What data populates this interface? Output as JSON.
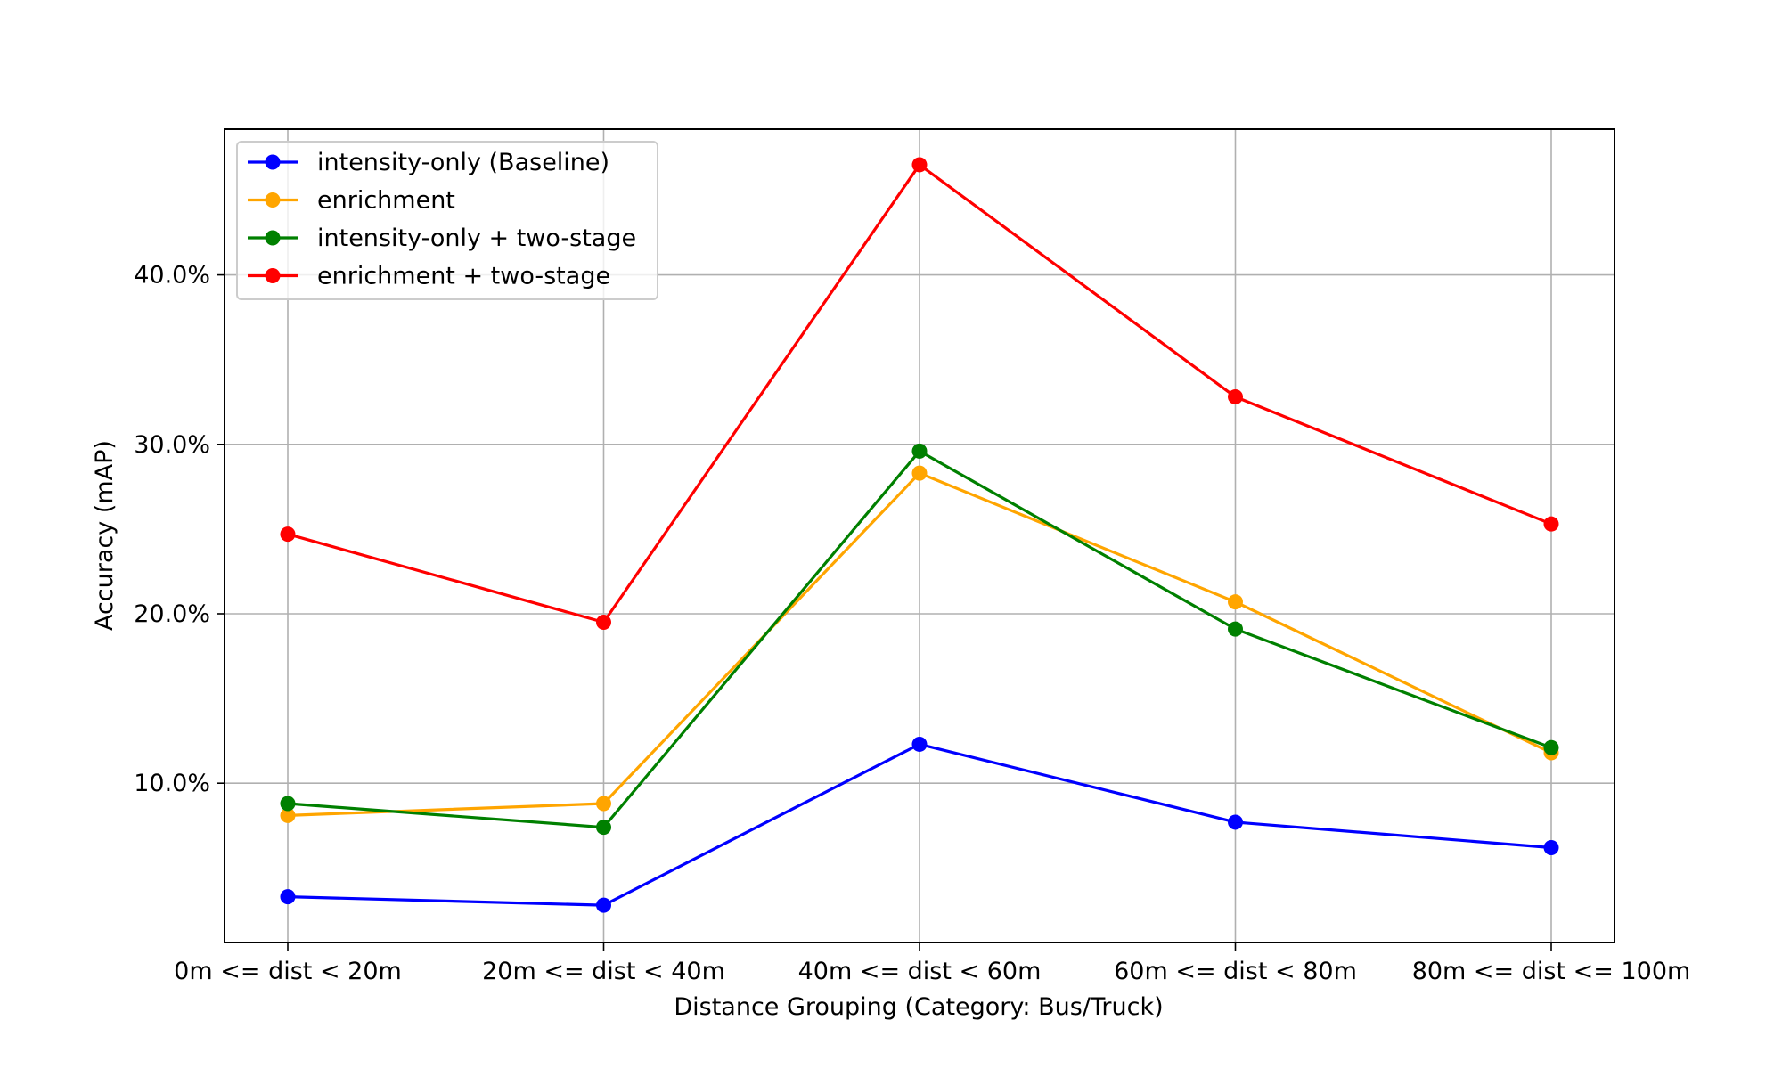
{
  "chart_data": {
    "type": "line",
    "xlabel": "Distance Grouping (Category: Bus/Truck)",
    "ylabel": "Accuracy (mAP)",
    "categories": [
      "0m <= dist < 20m",
      "20m <= dist < 40m",
      "40m <= dist < 60m",
      "60m <= dist < 80m",
      "80m <= dist <= 100m"
    ],
    "ylim": [
      0.6,
      48.6
    ],
    "yticks": [
      10,
      20,
      30,
      40
    ],
    "ytick_labels": [
      "10.0%",
      "20.0%",
      "30.0%",
      "40.0%"
    ],
    "y_unit": "%",
    "grid": true,
    "legend_position": "top-left",
    "series": [
      {
        "name": "intensity-only (Baseline)",
        "color": "#0000ff",
        "values": [
          3.3,
          2.8,
          12.3,
          7.7,
          6.2
        ]
      },
      {
        "name": "enrichment",
        "color": "#ffa500",
        "values": [
          8.1,
          8.8,
          28.3,
          20.7,
          11.8
        ]
      },
      {
        "name": "intensity-only + two-stage",
        "color": "#008000",
        "values": [
          8.8,
          7.4,
          29.6,
          19.1,
          12.1
        ]
      },
      {
        "name": "enrichment + two-stage",
        "color": "#ff0000",
        "values": [
          24.7,
          19.5,
          46.5,
          32.8,
          25.3
        ]
      }
    ]
  }
}
